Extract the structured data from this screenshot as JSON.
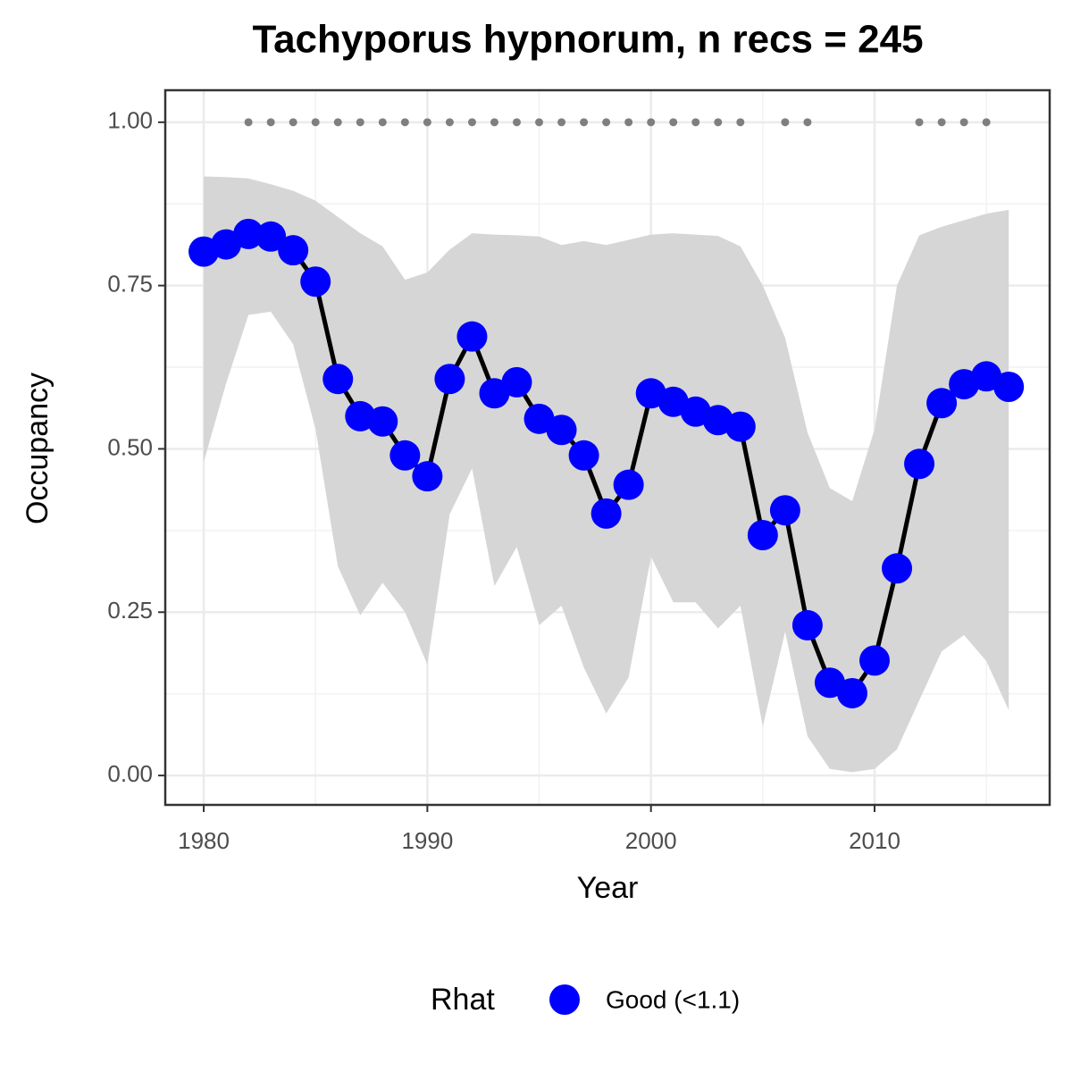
{
  "chart_data": {
    "type": "line",
    "title": "Tachyporus hypnorum, n recs = 245",
    "x_label": "Year",
    "y_label": "Occupancy",
    "x": [
      1980,
      1981,
      1982,
      1983,
      1984,
      1985,
      1986,
      1987,
      1988,
      1989,
      1990,
      1991,
      1992,
      1993,
      1994,
      1995,
      1996,
      1997,
      1998,
      1999,
      2000,
      2001,
      2002,
      2003,
      2004,
      2005,
      2006,
      2007,
      2008,
      2009,
      2010,
      2011,
      2012,
      2013,
      2014,
      2015,
      2016
    ],
    "series": [
      {
        "name": "Good (<1.1)",
        "color": "#0000ff",
        "line_color": "#000000",
        "values": [
          0.802,
          0.813,
          0.829,
          0.825,
          0.804,
          0.756,
          0.607,
          0.55,
          0.542,
          0.49,
          0.458,
          0.607,
          0.672,
          0.585,
          0.602,
          0.546,
          0.529,
          0.49,
          0.401,
          0.445,
          0.585,
          0.572,
          0.557,
          0.544,
          0.534,
          0.368,
          0.406,
          0.23,
          0.142,
          0.126,
          0.176,
          0.317,
          0.477,
          0.57,
          0.599,
          0.611,
          0.595
        ]
      }
    ],
    "band": {
      "color": "#d6d6d6",
      "upper": [
        0.917,
        0.916,
        0.914,
        0.905,
        0.895,
        0.88,
        0.855,
        0.83,
        0.81,
        0.759,
        0.77,
        0.805,
        0.83,
        0.828,
        0.827,
        0.825,
        0.812,
        0.818,
        0.812,
        0.82,
        0.828,
        0.83,
        0.828,
        0.826,
        0.81,
        0.75,
        0.67,
        0.525,
        0.44,
        0.42,
        0.53,
        0.75,
        0.827,
        0.84,
        0.85,
        0.86,
        0.866
      ],
      "lower": [
        0.48,
        0.6,
        0.705,
        0.71,
        0.66,
        0.53,
        0.32,
        0.245,
        0.295,
        0.25,
        0.17,
        0.4,
        0.47,
        0.29,
        0.35,
        0.23,
        0.26,
        0.165,
        0.095,
        0.15,
        0.335,
        0.265,
        0.265,
        0.225,
        0.26,
        0.075,
        0.22,
        0.06,
        0.01,
        0.005,
        0.01,
        0.04,
        0.115,
        0.19,
        0.215,
        0.175,
        0.1
      ]
    },
    "record_points": {
      "color": "#7f7f7f",
      "x": [
        1982,
        1983,
        1984,
        1985,
        1986,
        1987,
        1988,
        1989,
        1990,
        1991,
        1992,
        1993,
        1994,
        1995,
        1996,
        1997,
        1998,
        1999,
        2000,
        2001,
        2002,
        2003,
        2004,
        2006,
        2007,
        2012,
        2013,
        2014,
        2015
      ],
      "y": [
        1,
        1,
        1,
        1,
        1,
        1,
        1,
        1,
        1,
        1,
        1,
        1,
        1,
        1,
        1,
        1,
        1,
        1,
        1,
        1,
        1,
        1,
        1,
        1,
        1,
        1,
        1,
        1,
        1
      ]
    },
    "legend_title": "Rhat",
    "legend_position": "bottom",
    "xlim": [
      1978.28,
      2017.83
    ],
    "ylim": [
      -0.045,
      1.049
    ],
    "xticks": [
      1980,
      1990,
      2000,
      2010
    ],
    "yticks": [
      {
        "value": 0,
        "label": "0.00"
      },
      {
        "value": 0.25,
        "label": "0.25"
      },
      {
        "value": 0.5,
        "label": "0.50"
      },
      {
        "value": 0.75,
        "label": "0.75"
      },
      {
        "value": 1,
        "label": "1.00"
      }
    ],
    "grid": true,
    "minor_grid": true
  }
}
